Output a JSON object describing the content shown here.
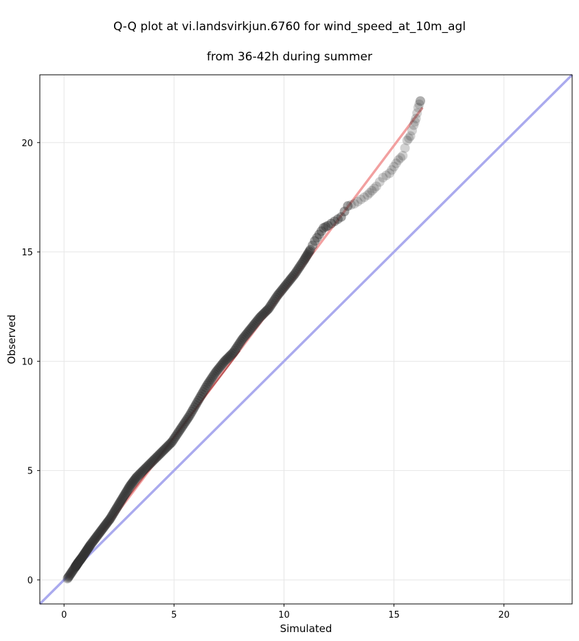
{
  "chart_data": {
    "type": "scatter",
    "title_line1": "Q-Q plot at vi.landsvirkjun.6760 for wind_speed_at_10m_agl",
    "title_line2": "from 36-42h during summer",
    "xlabel": "Simulated",
    "ylabel": "Observed",
    "xlim": [
      -1.1,
      23.1
    ],
    "ylim": [
      -1.1,
      23.1
    ],
    "xticks": [
      0,
      5,
      10,
      15,
      20
    ],
    "yticks": [
      0,
      5,
      10,
      15,
      20
    ],
    "grid": true,
    "colors": {
      "points": "#333333",
      "identity_line": "#aaaaee",
      "fit_line": "#f2a0a0",
      "low_fit_line": "#8b1a1a"
    },
    "identity_line": {
      "x": [
        -1.1,
        23.1
      ],
      "y": [
        -1.1,
        23.1
      ]
    },
    "fit_line": {
      "x": [
        0.2,
        16.3
      ],
      "y": [
        0.1,
        21.6
      ]
    },
    "quantiles": {
      "x": [
        0.15,
        0.25,
        0.35,
        0.45,
        0.55,
        0.65,
        0.8,
        1.0,
        1.2,
        1.5,
        1.8,
        2.1,
        2.4,
        2.7,
        3.0,
        3.3,
        3.7,
        4.1,
        4.5,
        4.9,
        5.3,
        5.7,
        6.1,
        6.5,
        6.9,
        7.3,
        7.7,
        8.1,
        8.5,
        8.9,
        9.3,
        9.7,
        10.1,
        10.5,
        10.9,
        11.2,
        11.4,
        11.6,
        11.8,
        12.0,
        12.3,
        12.6,
        12.9,
        13.2,
        13.5,
        13.8,
        14.0,
        14.2,
        14.5,
        14.8,
        15.0,
        15.2,
        15.4,
        15.6,
        15.75,
        15.9,
        16.0,
        16.1,
        16.2
      ],
      "y": [
        0.05,
        0.2,
        0.35,
        0.5,
        0.65,
        0.8,
        1.0,
        1.3,
        1.6,
        2.0,
        2.4,
        2.8,
        3.3,
        3.8,
        4.3,
        4.7,
        5.1,
        5.5,
        5.9,
        6.3,
        6.9,
        7.5,
        8.2,
        8.9,
        9.5,
        10.0,
        10.4,
        11.0,
        11.5,
        12.0,
        12.4,
        13.0,
        13.5,
        14.0,
        14.6,
        15.1,
        15.5,
        15.8,
        16.1,
        16.2,
        16.4,
        16.6,
        17.1,
        17.2,
        17.4,
        17.6,
        17.8,
        18.0,
        18.4,
        18.6,
        18.9,
        19.2,
        19.4,
        20.1,
        20.3,
        20.8,
        21.1,
        21.6,
        21.9
      ]
    }
  }
}
